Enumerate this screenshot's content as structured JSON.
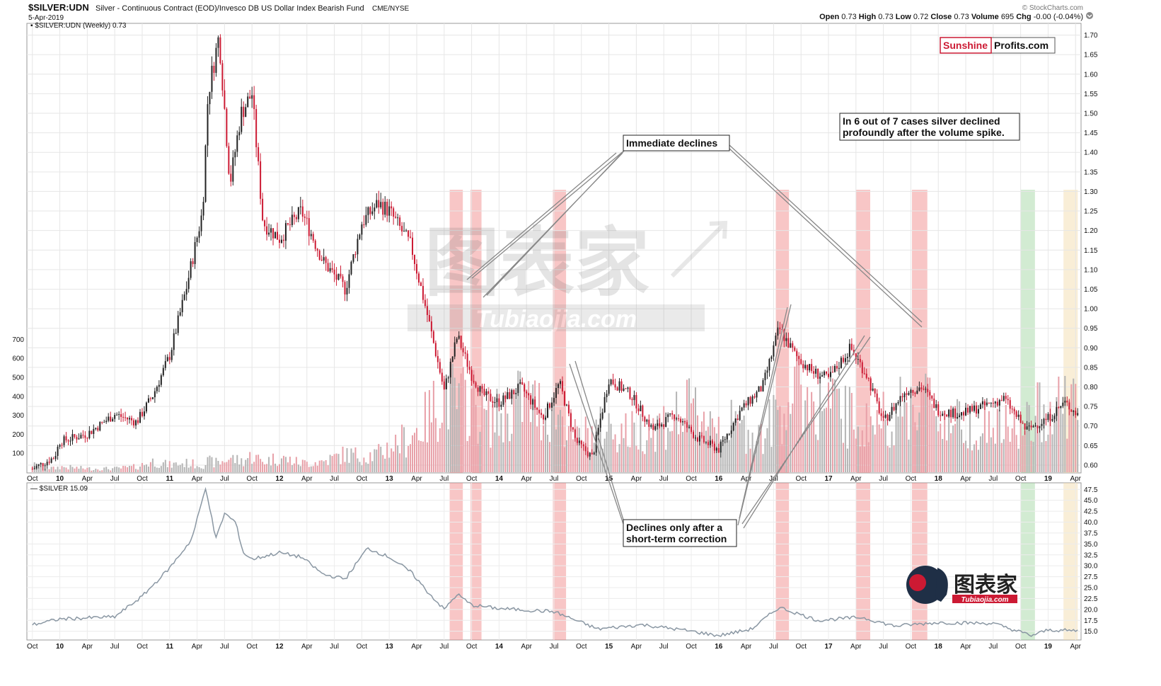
{
  "header": {
    "symbol": "$SILVER:UDN",
    "description": "Silver - Continuous Contract (EOD)/Invesco DB US Dollar Index Bearish Fund",
    "exchange": "CME/NYSE",
    "date": "5-Apr-2019",
    "credit": "© StockCharts.com",
    "ohlc": [
      {
        "label": "Open",
        "value": "0.73"
      },
      {
        "label": "High",
        "value": "0.73"
      },
      {
        "label": "Low",
        "value": "0.72"
      },
      {
        "label": "Close",
        "value": "0.73"
      },
      {
        "label": "Volume",
        "value": "695"
      },
      {
        "label": "Chg",
        "value": "-0.00 (-0.04%)"
      }
    ]
  },
  "brand": {
    "red": "Sunshine",
    "black": "Profits.com"
  },
  "watermark": {
    "cn": "图表家",
    "en": "Tubiaojia.com"
  },
  "colors": {
    "up": "#222222",
    "down": "#cc1a33",
    "vol_up": "#b4b4b4",
    "vol_down": "#e8a0a8",
    "band_red": "#f08080",
    "band_green": "#9cd39c",
    "band_tan": "#f2d9a6",
    "silver_line": "#8a97a3"
  },
  "chart_data": [
    {
      "type": "line",
      "title": "$SILVER:UDN (Weekly) 0.73",
      "legend_label": "$SILVER:UDN (Weekly) 0.73",
      "x_ticks": [
        "Oct",
        "10",
        "Apr",
        "Jul",
        "Oct",
        "11",
        "Apr",
        "Jul",
        "Oct",
        "12",
        "Apr",
        "Jul",
        "Oct",
        "13",
        "Apr",
        "Jul",
        "Oct",
        "14",
        "Apr",
        "Jul",
        "Oct",
        "15",
        "Apr",
        "Jul",
        "Oct",
        "16",
        "Apr",
        "Jul",
        "Oct",
        "17",
        "Apr",
        "Jul",
        "Oct",
        "18",
        "Apr",
        "Jul",
        "Oct",
        "19",
        "Apr"
      ],
      "y_ticks": [
        "0.60",
        "0.65",
        "0.70",
        "0.75",
        "0.80",
        "0.85",
        "0.90",
        "0.95",
        "1.00",
        "1.05",
        "1.10",
        "1.15",
        "1.20",
        "1.25",
        "1.30",
        "1.35",
        "1.40",
        "1.45",
        "1.50",
        "1.55",
        "1.60",
        "1.65",
        "1.70"
      ],
      "volume_ticks": [
        "100",
        "200",
        "300",
        "400",
        "500",
        "600",
        "700"
      ],
      "x": [
        2009.75,
        2009.95,
        2010.0,
        2010.25,
        2010.5,
        2010.7,
        2010.85,
        2011.0,
        2011.15,
        2011.3,
        2011.35,
        2011.45,
        2011.55,
        2011.65,
        2011.75,
        2011.85,
        2012.0,
        2012.2,
        2012.4,
        2012.6,
        2012.75,
        2012.9,
        2013.0,
        2013.2,
        2013.35,
        2013.5,
        2013.62,
        2013.75,
        2013.85,
        2014.0,
        2014.2,
        2014.4,
        2014.55,
        2014.7,
        2014.85,
        2015.0,
        2015.2,
        2015.4,
        2015.6,
        2015.8,
        2016.0,
        2016.2,
        2016.4,
        2016.55,
        2016.7,
        2016.85,
        2017.0,
        2017.2,
        2017.35,
        2017.5,
        2017.7,
        2017.85,
        2018.0,
        2018.2,
        2018.4,
        2018.6,
        2018.8,
        2019.0,
        2019.15,
        2019.27
      ],
      "y": [
        0.59,
        0.62,
        0.66,
        0.68,
        0.73,
        0.71,
        0.78,
        0.88,
        1.05,
        1.25,
        1.55,
        1.7,
        1.32,
        1.5,
        1.55,
        1.22,
        1.18,
        1.25,
        1.12,
        1.05,
        1.22,
        1.27,
        1.25,
        1.16,
        0.98,
        0.79,
        0.93,
        0.83,
        0.78,
        0.76,
        0.8,
        0.72,
        0.81,
        0.66,
        0.62,
        0.82,
        0.78,
        0.69,
        0.73,
        0.67,
        0.64,
        0.74,
        0.8,
        0.95,
        0.88,
        0.84,
        0.82,
        0.9,
        0.83,
        0.71,
        0.79,
        0.8,
        0.74,
        0.73,
        0.75,
        0.77,
        0.69,
        0.72,
        0.76,
        0.73
      ],
      "volume": [
        40,
        20,
        30,
        20,
        20,
        30,
        60,
        40,
        50,
        40,
        60,
        50,
        80,
        60,
        90,
        60,
        80,
        50,
        60,
        100,
        90,
        100,
        140,
        200,
        300,
        450,
        380,
        400,
        320,
        300,
        400,
        350,
        330,
        190,
        220,
        250,
        220,
        250,
        300,
        350,
        280,
        240,
        200,
        350,
        450,
        400,
        380,
        300,
        260,
        300,
        350,
        450,
        310,
        270,
        260,
        240,
        250,
        380,
        400,
        360
      ],
      "annotations": [
        {
          "text": [
            "Immediate declines"
          ]
        },
        {
          "text": [
            "Declines only after a",
            "short-term correction"
          ]
        },
        {
          "text": [
            "In 6 out of 7 cases silver declined",
            "profoundly after the volume spike."
          ]
        }
      ],
      "highlight_bands": [
        {
          "start": 2013.55,
          "end": 2013.67,
          "color": "red"
        },
        {
          "start": 2013.74,
          "end": 2013.84,
          "color": "red"
        },
        {
          "start": 2014.49,
          "end": 2014.61,
          "color": "red"
        },
        {
          "start": 2016.52,
          "end": 2016.64,
          "color": "red"
        },
        {
          "start": 2017.25,
          "end": 2017.38,
          "color": "red"
        },
        {
          "start": 2017.76,
          "end": 2017.9,
          "color": "red"
        },
        {
          "start": 2018.75,
          "end": 2018.88,
          "color": "green"
        },
        {
          "start": 2019.14,
          "end": 2019.27,
          "color": "tan"
        }
      ],
      "ylim": [
        0.58,
        1.73
      ]
    },
    {
      "type": "line",
      "title": "$SILVER 15.09",
      "legend_label": "$SILVER 15.09",
      "y_ticks": [
        "15.0",
        "17.5",
        "20.0",
        "22.5",
        "25.0",
        "27.5",
        "30.0",
        "32.5",
        "35.0",
        "37.5",
        "40.0",
        "42.5",
        "45.0",
        "47.5"
      ],
      "x": [
        2009.75,
        2010.0,
        2010.5,
        2010.75,
        2011.0,
        2011.2,
        2011.33,
        2011.42,
        2011.5,
        2011.6,
        2011.67,
        2011.75,
        2012.0,
        2012.2,
        2012.4,
        2012.6,
        2012.8,
        2013.0,
        2013.2,
        2013.35,
        2013.5,
        2013.62,
        2013.75,
        2014.0,
        2014.5,
        2014.9,
        2015.3,
        2015.7,
        2016.0,
        2016.3,
        2016.55,
        2016.9,
        2017.3,
        2017.6,
        2018.0,
        2018.5,
        2018.85,
        2019.0,
        2019.27
      ],
      "y": [
        16.5,
        17.8,
        18.3,
        23.0,
        29.5,
        36.0,
        48.0,
        36.0,
        42.0,
        40.0,
        33.0,
        31.5,
        33.0,
        32.0,
        28.0,
        27.0,
        34.0,
        32.0,
        28.5,
        24.0,
        20.0,
        23.5,
        21.0,
        20.2,
        19.5,
        15.5,
        16.5,
        15.2,
        14.0,
        15.5,
        20.5,
        17.5,
        18.2,
        16.2,
        17.0,
        16.8,
        14.0,
        15.3,
        15.1
      ],
      "ylim": [
        13.0,
        49.0
      ]
    }
  ]
}
